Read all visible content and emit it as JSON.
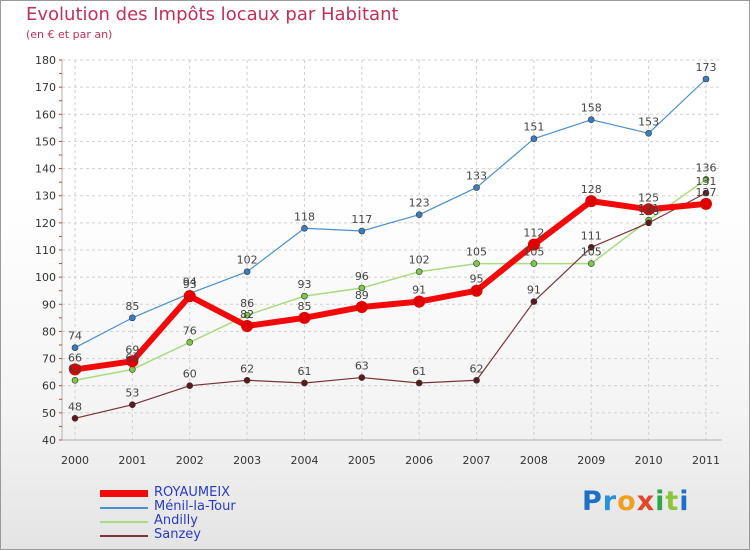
{
  "header": {
    "title": "Evolution des Impôts locaux par Habitant",
    "subtitle": "(en € et par an)"
  },
  "logo": {
    "text": "Proxiti"
  },
  "colors": {
    "grid": "#cfcfcf",
    "axis_text": "#333333",
    "label_text": "#444444",
    "title": "#c0305a",
    "legend_text": "#2a3cc6"
  },
  "chart_data": {
    "type": "line",
    "title": "Evolution des Impôts locaux par Habitant",
    "subtitle": "(en € et par an)",
    "xlabel": "",
    "ylabel": "",
    "x": [
      "2000",
      "2001",
      "2002",
      "2003",
      "2004",
      "2005",
      "2006",
      "2007",
      "2008",
      "2009",
      "2010",
      "2011"
    ],
    "ylim": [
      40,
      180
    ],
    "yticks": [
      40,
      50,
      60,
      70,
      80,
      90,
      100,
      110,
      120,
      130,
      140,
      150,
      160,
      170,
      180
    ],
    "grid": true,
    "legend_position": "bottom-left",
    "series": [
      {
        "name": "Ménil-la-Tour",
        "color": "#4a8fd0",
        "marker": "#3a7cc0",
        "width": 1.2,
        "values": [
          74,
          85,
          94,
          102,
          118,
          117,
          123,
          133,
          151,
          158,
          153,
          173
        ]
      },
      {
        "name": "Andilly",
        "color": "#a8dc80",
        "marker": "#7cc84a",
        "width": 1.5,
        "values": [
          62,
          66,
          76,
          86,
          93,
          96,
          102,
          105,
          105,
          105,
          121,
          136
        ]
      },
      {
        "name": "Sanzey",
        "color": "#7a3436",
        "marker": "#5c1a1c",
        "width": 1.2,
        "values": [
          48,
          53,
          60,
          62,
          61,
          63,
          61,
          62,
          91,
          111,
          120,
          131
        ]
      },
      {
        "name": "ROYAUMEIX",
        "color": "#f20a0a",
        "marker": "#e00000",
        "width": 6,
        "values": [
          66,
          69,
          93,
          82,
          85,
          89,
          91,
          95,
          112,
          128,
          125,
          127
        ]
      }
    ],
    "legend_order": [
      "ROYAUMEIX",
      "Ménil-la-Tour",
      "Andilly",
      "Sanzey"
    ]
  }
}
